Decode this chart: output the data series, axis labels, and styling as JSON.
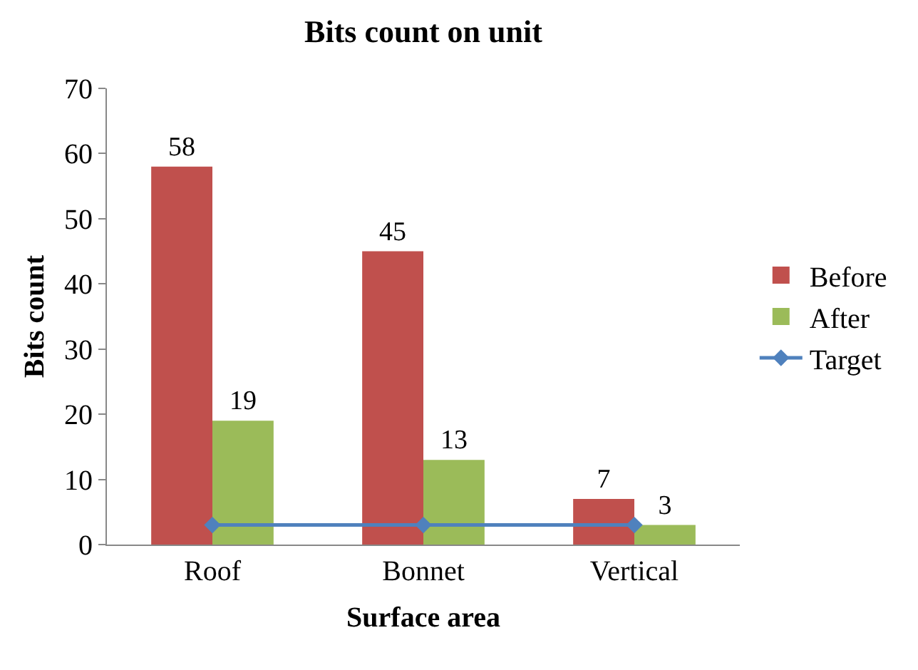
{
  "chart_data": {
    "type": "bar",
    "title": "Bits count on unit",
    "xlabel": "Surface area",
    "ylabel": "Bits count",
    "categories": [
      "Roof",
      "Bonnet",
      "Vertical"
    ],
    "series": [
      {
        "name": "Before",
        "color": "#c0504d",
        "values": [
          58,
          45,
          7
        ],
        "value_labels": [
          "58",
          "45",
          "7"
        ]
      },
      {
        "name": "After",
        "color": "#9bbb59",
        "values": [
          19,
          13,
          3
        ],
        "value_labels": [
          "19",
          "13",
          "3"
        ]
      },
      {
        "name": "Target",
        "type": "line",
        "color": "#4f81bd",
        "marker": "diamond",
        "values": [
          3,
          3,
          3
        ]
      }
    ],
    "ylim": [
      0,
      70
    ],
    "yticks": [
      0,
      10,
      20,
      30,
      40,
      50,
      60,
      70
    ],
    "grid": false,
    "legend": "right"
  }
}
